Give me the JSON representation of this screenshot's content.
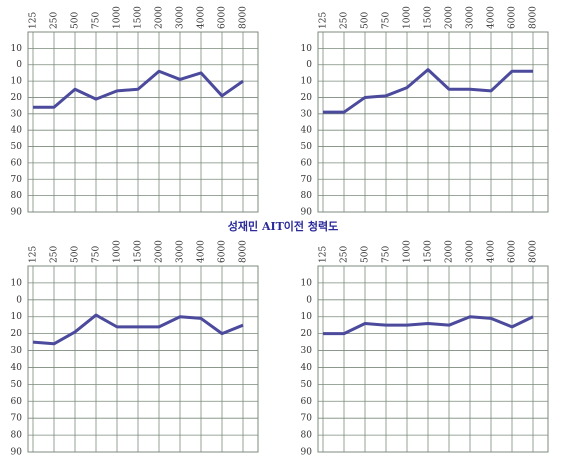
{
  "caption": "성재민 AIT이전 청력도",
  "chart_data": [
    {
      "type": "line",
      "categories": [
        "125",
        "250",
        "500",
        "750",
        "1000",
        "1500",
        "2000",
        "3000",
        "4000",
        "6000",
        "8000"
      ],
      "series": [
        {
          "color": "#4b4a9c",
          "values": [
            26,
            26,
            15,
            21,
            16,
            15,
            4,
            9,
            5,
            19,
            10
          ]
        }
      ],
      "ylim": [
        -20,
        90
      ],
      "yticks": [
        {
          "value": -10,
          "label": "10"
        },
        0,
        10,
        20,
        30,
        40,
        50,
        60,
        70,
        80,
        90
      ],
      "grid": true,
      "y_inverted": true
    },
    {
      "type": "line",
      "categories": [
        "125",
        "250",
        "500",
        "750",
        "1000",
        "1500",
        "2000",
        "3000",
        "4000",
        "6000",
        "8000"
      ],
      "series": [
        {
          "color": "#4b4a9c",
          "values": [
            29,
            29,
            20,
            19,
            14,
            3,
            15,
            15,
            16,
            4,
            4
          ]
        }
      ],
      "ylim": [
        -20,
        90
      ],
      "yticks": [
        {
          "value": -10,
          "label": "10"
        },
        0,
        10,
        20,
        30,
        40,
        50,
        60,
        70,
        80,
        90
      ],
      "grid": true,
      "y_inverted": true
    },
    {
      "type": "line",
      "categories": [
        "125",
        "250",
        "500",
        "750",
        "1000",
        "1500",
        "2000",
        "3000",
        "4000",
        "6000",
        "8000"
      ],
      "series": [
        {
          "color": "#4b4a9c",
          "values": [
            25,
            26,
            19,
            9,
            16,
            16,
            16,
            10,
            11,
            20,
            15
          ]
        }
      ],
      "ylim": [
        -20,
        90
      ],
      "yticks": [
        {
          "value": -10,
          "label": "10"
        },
        0,
        10,
        20,
        30,
        40,
        50,
        60,
        70,
        80,
        90
      ],
      "grid": true,
      "y_inverted": true
    },
    {
      "type": "line",
      "categories": [
        "125",
        "250",
        "500",
        "750",
        "1000",
        "1500",
        "2000",
        "3000",
        "4000",
        "6000",
        "8000"
      ],
      "series": [
        {
          "color": "#4b4a9c",
          "values": [
            20,
            20,
            14,
            15,
            15,
            14,
            15,
            10,
            11,
            16,
            10
          ]
        }
      ],
      "ylim": [
        -20,
        90
      ],
      "yticks": [
        {
          "value": -10,
          "label": "10"
        },
        0,
        10,
        20,
        30,
        40,
        50,
        60,
        70,
        80,
        90
      ],
      "grid": true,
      "y_inverted": true
    }
  ]
}
